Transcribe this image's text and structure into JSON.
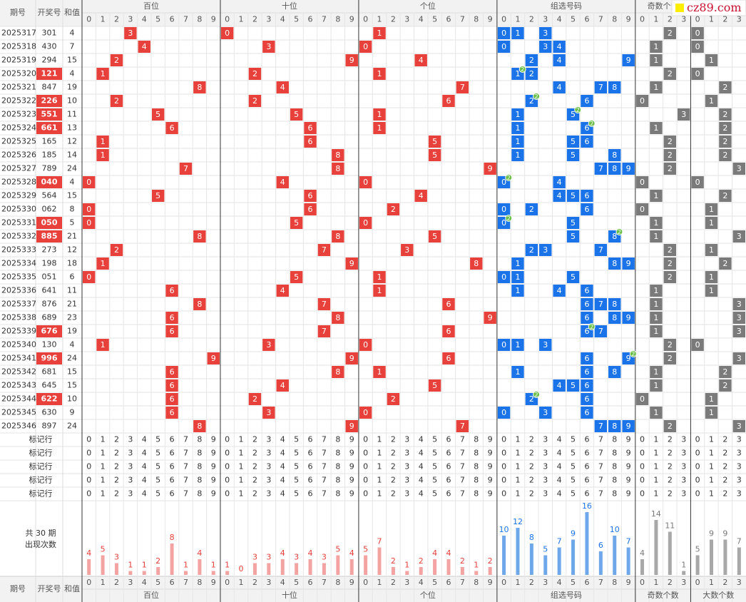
{
  "header": {
    "issue": "期号",
    "number": "开奖号",
    "sum": "和值",
    "groups": [
      {
        "name": "百位",
        "digits": [
          0,
          1,
          2,
          3,
          4,
          5,
          6,
          7,
          8,
          9
        ],
        "color": "#e8403a",
        "bar_color": "#f4a3a3"
      },
      {
        "name": "十位",
        "digits": [
          0,
          1,
          2,
          3,
          4,
          5,
          6,
          7,
          8,
          9
        ],
        "color": "#e8403a",
        "bar_color": "#f4a3a3"
      },
      {
        "name": "个位",
        "digits": [
          0,
          1,
          2,
          3,
          4,
          5,
          6,
          7,
          8,
          9
        ],
        "color": "#e8403a",
        "bar_color": "#f4a3a3"
      },
      {
        "name": "组选号码",
        "digits": [
          0,
          1,
          2,
          3,
          4,
          5,
          6,
          7,
          8,
          9
        ],
        "color": "#1a73e8",
        "bar_color": "#6fa8ea"
      },
      {
        "name": "奇数个数",
        "digits": [
          0,
          1,
          2,
          3
        ],
        "color": "#7a7a7a",
        "bar_color": "#a8a8a8"
      },
      {
        "name": "大数个数",
        "digits": [
          0,
          1,
          2,
          3
        ],
        "color": "#7a7a7a",
        "bar_color": "#a8a8a8"
      }
    ]
  },
  "watermark": "cz89.com",
  "rows": [
    {
      "issue": "2025317",
      "number": "301",
      "sum": 4,
      "digits": [
        3,
        0,
        1
      ],
      "odd": 2,
      "big": 0
    },
    {
      "issue": "2025318",
      "number": "430",
      "sum": 7,
      "digits": [
        4,
        3,
        0
      ],
      "odd": 1,
      "big": 0
    },
    {
      "issue": "2025319",
      "number": "294",
      "sum": 15,
      "digits": [
        2,
        9,
        4
      ],
      "odd": 1,
      "big": 1
    },
    {
      "issue": "2025320",
      "number": "121",
      "sum": 4,
      "digits": [
        1,
        2,
        1
      ],
      "odd": 2,
      "big": 0,
      "pair": 2
    },
    {
      "issue": "2025321",
      "number": "847",
      "sum": 19,
      "digits": [
        8,
        4,
        7
      ],
      "odd": 1,
      "big": 2
    },
    {
      "issue": "2025322",
      "number": "226",
      "sum": 10,
      "digits": [
        2,
        2,
        6
      ],
      "odd": 0,
      "big": 1,
      "pair": 2
    },
    {
      "issue": "2025323",
      "number": "551",
      "sum": 11,
      "digits": [
        5,
        5,
        1
      ],
      "odd": 3,
      "big": 2,
      "pair": 2
    },
    {
      "issue": "2025324",
      "number": "661",
      "sum": 13,
      "digits": [
        6,
        6,
        1
      ],
      "odd": 1,
      "big": 2,
      "pair": 2
    },
    {
      "issue": "2025325",
      "number": "165",
      "sum": 12,
      "digits": [
        1,
        6,
        5
      ],
      "odd": 2,
      "big": 2
    },
    {
      "issue": "2025326",
      "number": "185",
      "sum": 14,
      "digits": [
        1,
        8,
        5
      ],
      "odd": 2,
      "big": 2
    },
    {
      "issue": "2025327",
      "number": "789",
      "sum": 24,
      "digits": [
        7,
        8,
        9
      ],
      "odd": 2,
      "big": 3
    },
    {
      "issue": "2025328",
      "number": "040",
      "sum": 4,
      "digits": [
        0,
        4,
        0
      ],
      "odd": 0,
      "big": 0,
      "pair": 2
    },
    {
      "issue": "2025329",
      "number": "564",
      "sum": 15,
      "digits": [
        5,
        6,
        4
      ],
      "odd": 1,
      "big": 2
    },
    {
      "issue": "2025330",
      "number": "062",
      "sum": 8,
      "digits": [
        0,
        6,
        2
      ],
      "odd": 0,
      "big": 1
    },
    {
      "issue": "2025331",
      "number": "050",
      "sum": 5,
      "digits": [
        0,
        5,
        0
      ],
      "odd": 1,
      "big": 1,
      "pair": 2
    },
    {
      "issue": "2025332",
      "number": "885",
      "sum": 21,
      "digits": [
        8,
        8,
        5
      ],
      "odd": 1,
      "big": 3,
      "pair": 2
    },
    {
      "issue": "2025333",
      "number": "273",
      "sum": 12,
      "digits": [
        2,
        7,
        3
      ],
      "odd": 2,
      "big": 1
    },
    {
      "issue": "2025334",
      "number": "198",
      "sum": 18,
      "digits": [
        1,
        9,
        8
      ],
      "odd": 2,
      "big": 2
    },
    {
      "issue": "2025335",
      "number": "051",
      "sum": 6,
      "digits": [
        0,
        5,
        1
      ],
      "odd": 2,
      "big": 1
    },
    {
      "issue": "2025336",
      "number": "641",
      "sum": 11,
      "digits": [
        6,
        4,
        1
      ],
      "odd": 1,
      "big": 1
    },
    {
      "issue": "2025337",
      "number": "876",
      "sum": 21,
      "digits": [
        8,
        7,
        6
      ],
      "odd": 1,
      "big": 3
    },
    {
      "issue": "2025338",
      "number": "689",
      "sum": 23,
      "digits": [
        6,
        8,
        9
      ],
      "odd": 1,
      "big": 3
    },
    {
      "issue": "2025339",
      "number": "676",
      "sum": 19,
      "digits": [
        6,
        7,
        6
      ],
      "odd": 1,
      "big": 3,
      "pair": 2
    },
    {
      "issue": "2025340",
      "number": "130",
      "sum": 4,
      "digits": [
        1,
        3,
        0
      ],
      "odd": 2,
      "big": 0
    },
    {
      "issue": "2025341",
      "number": "996",
      "sum": 24,
      "digits": [
        9,
        9,
        6
      ],
      "odd": 2,
      "big": 3,
      "pair": 2
    },
    {
      "issue": "2025342",
      "number": "681",
      "sum": 15,
      "digits": [
        6,
        8,
        1
      ],
      "odd": 1,
      "big": 2
    },
    {
      "issue": "2025343",
      "number": "645",
      "sum": 15,
      "digits": [
        6,
        4,
        5
      ],
      "odd": 1,
      "big": 2
    },
    {
      "issue": "2025344",
      "number": "622",
      "sum": 10,
      "digits": [
        6,
        2,
        2
      ],
      "odd": 0,
      "big": 1,
      "pair": 2
    },
    {
      "issue": "2025345",
      "number": "630",
      "sum": 9,
      "digits": [
        6,
        3,
        0
      ],
      "odd": 1,
      "big": 1
    },
    {
      "issue": "2025346",
      "number": "897",
      "sum": 24,
      "digits": [
        8,
        9,
        7
      ],
      "odd": 2,
      "big": 3
    }
  ],
  "marker_rows": [
    "标记行",
    "标记行",
    "标记行",
    "标记行",
    "标记行"
  ],
  "stats": {
    "label": [
      "共 30 期",
      "出现次数"
    ],
    "counts": [
      [
        4,
        5,
        3,
        1,
        1,
        2,
        8,
        1,
        4,
        1
      ],
      [
        1,
        0,
        3,
        3,
        4,
        3,
        4,
        3,
        5,
        4
      ],
      [
        5,
        7,
        2,
        1,
        2,
        4,
        4,
        2,
        1,
        2
      ],
      [
        10,
        12,
        8,
        5,
        7,
        9,
        16,
        6,
        10,
        7
      ],
      [
        4,
        14,
        11,
        1
      ],
      [
        5,
        9,
        9,
        7
      ]
    ]
  }
}
